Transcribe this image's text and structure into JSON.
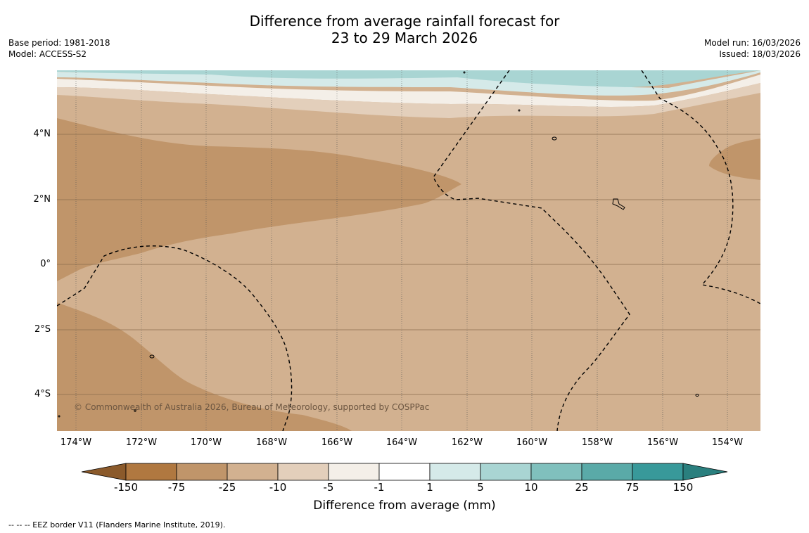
{
  "title": {
    "line1": "Difference from average rainfall forecast for",
    "line2": "23 to 29 March 2026"
  },
  "meta_left": {
    "base_period": "Base period: 1981-2018",
    "model": "Model: ACCESS-S2"
  },
  "meta_right": {
    "model_run": "Model run: 16/03/2026",
    "issued": "Issued: 18/03/2026"
  },
  "map": {
    "lat_labels": [
      "4°N",
      "2°N",
      "0°",
      "2°S",
      "4°S"
    ],
    "lon_labels": [
      "174°W",
      "172°W",
      "170°W",
      "168°W",
      "166°W",
      "164°W",
      "162°W",
      "160°W",
      "158°W",
      "156°W",
      "154°W"
    ],
    "copyright": "© Commonwealth of Australia 2026, Bureau of Meteorology, supported by COSPPac",
    "colors": {
      "dark_brown": "#c0956a",
      "mid_brown": "#d2b190",
      "light_brown": "#e3cfbb",
      "very_light": "#f4efe8",
      "light_teal": "#d5eae9",
      "teal": "#a9d5d3"
    }
  },
  "colorbar": {
    "title": "Difference from average (mm)",
    "ticks": [
      "-150",
      "-75",
      "-25",
      "-10",
      "-5",
      "-1",
      "1",
      "5",
      "10",
      "25",
      "75",
      "150"
    ],
    "colors": [
      "#8b5a2b",
      "#b07840",
      "#c0956a",
      "#d2b190",
      "#e3cfbb",
      "#f4efe8",
      "#ffffff",
      "#d5eae9",
      "#a9d5d3",
      "#80c0bd",
      "#5aaaa8",
      "#38999a",
      "#2a7f7e"
    ]
  },
  "footnote": "--  --  -- EEZ border V11 (Flanders Marine Institute, 2019)."
}
